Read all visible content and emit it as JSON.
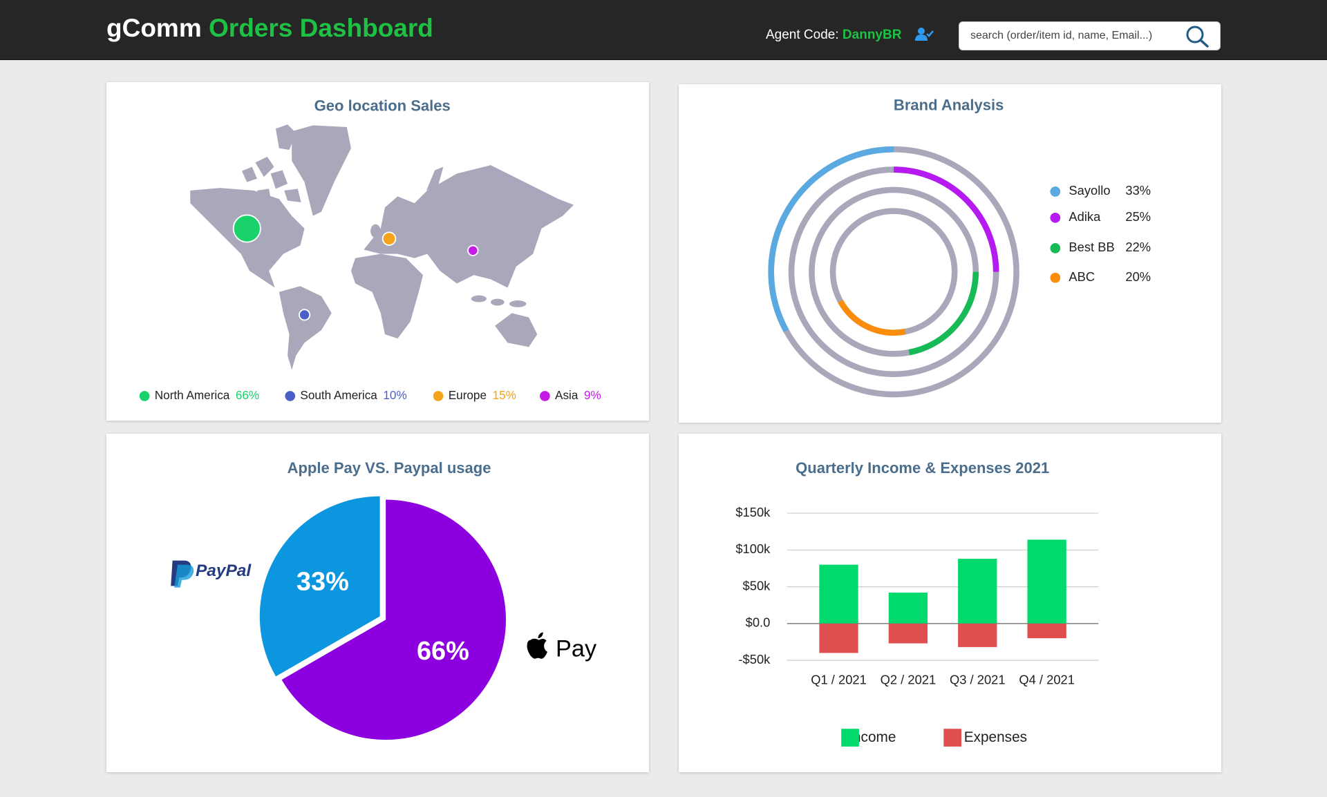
{
  "header": {
    "brand": "gComm",
    "title": "Orders Dashboard",
    "agent_label": "Agent Code:",
    "agent": "DannyBR",
    "search_placeholder": "search (order/item id, name, Email...)"
  },
  "chart_data": [
    {
      "type": "bubble_map",
      "title": "Geo location Sales",
      "categories": [
        "North America",
        "South America",
        "Europe",
        "Asia"
      ],
      "values": [
        66,
        10,
        15,
        9
      ],
      "value_labels": [
        "66%",
        "10%",
        "15%",
        "9%"
      ],
      "colors": [
        "#1ad26a",
        "#4a5fc8",
        "#f5a31a",
        "#c61ae6"
      ]
    },
    {
      "type": "radial_bar",
      "title": "Brand Analysis",
      "categories": [
        "Sayollo",
        "Adika",
        "Best BB",
        "ABC"
      ],
      "values": [
        33,
        25,
        22,
        20
      ],
      "value_labels": [
        "33%",
        "25%",
        "22%",
        "20%"
      ],
      "colors": [
        "#5aa9e0",
        "#b51af0",
        "#16bb55",
        "#fb8c0c"
      ]
    },
    {
      "type": "pie",
      "title": "Apple Pay VS. Paypal usage",
      "categories": [
        "PayPal",
        "Pay"
      ],
      "values": [
        33,
        66
      ],
      "value_labels": [
        "33%",
        "66%"
      ],
      "colors": [
        "#0d96e0",
        "#8c00e0"
      ]
    },
    {
      "type": "bar",
      "title": "Quarterly Income & Expenses 2021",
      "categories": [
        "Q1 / 2021",
        "Q2 / 2021",
        "Q3 / 2021",
        "Q4 / 2021"
      ],
      "series": [
        {
          "name": "Income",
          "color": "#00d96b",
          "values": [
            80000,
            42000,
            88000,
            114000
          ]
        },
        {
          "name": "Expenses",
          "color": "#e04f4f",
          "values": [
            -40000,
            -27000,
            -32000,
            -20000
          ]
        }
      ],
      "ylim": [
        -50000,
        150000
      ],
      "yticks": [
        {
          "value": -50000,
          "label": "-$50k"
        },
        {
          "value": 0,
          "label": "$0.0"
        },
        {
          "value": 50000,
          "label": "$50k"
        },
        {
          "value": 100000,
          "label": "$100k"
        },
        {
          "value": 150000,
          "label": "$150k"
        }
      ],
      "grid": true
    }
  ]
}
